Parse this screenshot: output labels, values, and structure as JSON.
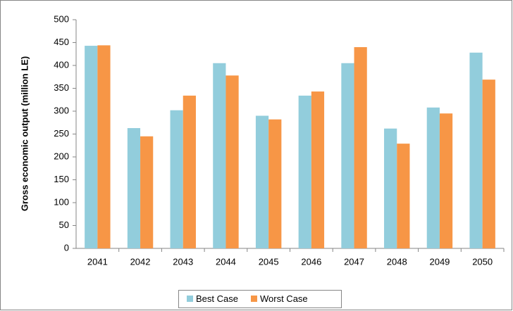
{
  "chart_data": {
    "type": "bar",
    "y_label": "Gross economic output (million LE)",
    "categories": [
      "2041",
      "2042",
      "2043",
      "2044",
      "2045",
      "2046",
      "2047",
      "2048",
      "2049",
      "2050"
    ],
    "series": [
      {
        "name": "Best Case",
        "color": "#92cddc",
        "values": [
          443,
          263,
          302,
          405,
          290,
          334,
          405,
          262,
          308,
          428
        ]
      },
      {
        "name": "Worst Case",
        "color": "#f79646",
        "values": [
          444,
          245,
          334,
          378,
          282,
          343,
          440,
          229,
          295,
          369
        ]
      }
    ],
    "ylim": [
      0,
      500
    ],
    "yticks": [
      0,
      50,
      100,
      150,
      200,
      250,
      300,
      350,
      400,
      450,
      500
    ],
    "legend": "bottom"
  }
}
